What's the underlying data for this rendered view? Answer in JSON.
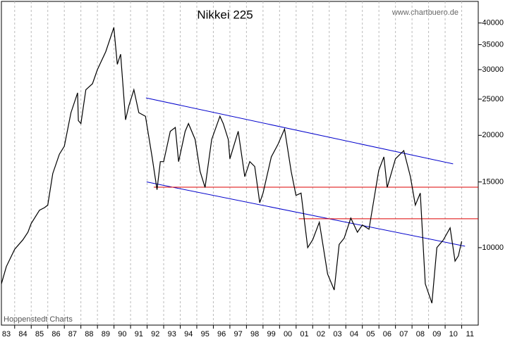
{
  "chart_data": {
    "type": "line",
    "title": "Nikkei 225",
    "subtitle": "www.chartbuero.de",
    "source": "Hoppenstedt Charts",
    "log_scale": true,
    "grid": true,
    "xlim": [
      1983.2,
      2012
    ],
    "ylim": [
      6200,
      45700
    ],
    "yticks": [
      10000,
      15000,
      20000,
      25000,
      30000,
      35000,
      40000
    ],
    "xticks": [
      {
        "value": 1983,
        "label": "83"
      },
      {
        "value": 1984,
        "label": "84"
      },
      {
        "value": 1985,
        "label": "85"
      },
      {
        "value": 1986,
        "label": "86"
      },
      {
        "value": 1987,
        "label": "87"
      },
      {
        "value": 1988,
        "label": "88"
      },
      {
        "value": 1989,
        "label": "89"
      },
      {
        "value": 1990,
        "label": "90"
      },
      {
        "value": 1991,
        "label": "91"
      },
      {
        "value": 1992,
        "label": "92"
      },
      {
        "value": 1993,
        "label": "93"
      },
      {
        "value": 1994,
        "label": "94"
      },
      {
        "value": 1995,
        "label": "95"
      },
      {
        "value": 1996,
        "label": "96"
      },
      {
        "value": 1997,
        "label": "97"
      },
      {
        "value": 1998,
        "label": "98"
      },
      {
        "value": 1999,
        "label": "99"
      },
      {
        "value": 2000,
        "label": "00"
      },
      {
        "value": 2001,
        "label": "01"
      },
      {
        "value": 2002,
        "label": "02"
      },
      {
        "value": 2003,
        "label": "03"
      },
      {
        "value": 2004,
        "label": "04"
      },
      {
        "value": 2005,
        "label": "05"
      },
      {
        "value": 2006,
        "label": "06"
      },
      {
        "value": 2007,
        "label": "07"
      },
      {
        "value": 2008,
        "label": "08"
      },
      {
        "value": 2009,
        "label": "09"
      },
      {
        "value": 2010,
        "label": "10"
      },
      {
        "value": 2011,
        "label": "11"
      }
    ],
    "series": [
      {
        "color": "#000000",
        "x": [
          1983.2,
          1983.5,
          1984.0,
          1984.5,
          1984.8,
          1985.0,
          1985.5,
          1985.8,
          1986.0,
          1986.3,
          1986.7,
          1987.0,
          1987.4,
          1987.8,
          1987.85,
          1988.0,
          1988.3,
          1988.7,
          1989.0,
          1989.5,
          1989.99,
          1990.2,
          1990.4,
          1990.7,
          1990.9,
          1991.2,
          1991.5,
          1991.9,
          1992.3,
          1992.6,
          1992.8,
          1993.0,
          1993.4,
          1993.7,
          1993.9,
          1994.3,
          1994.5,
          1994.9,
          1995.2,
          1995.5,
          1995.9,
          1996.4,
          1996.6,
          1996.9,
          1997.0,
          1997.5,
          1997.9,
          1998.2,
          1998.5,
          1998.8,
          1999.0,
          1999.5,
          1999.9,
          2000.3,
          2000.7,
          2000.99,
          2001.3,
          2001.7,
          2002.0,
          2002.4,
          2002.9,
          2003.3,
          2003.6,
          2003.9,
          2004.3,
          2004.7,
          2005.0,
          2005.4,
          2005.99,
          2006.3,
          2006.5,
          2007.0,
          2007.5,
          2007.9,
          2008.2,
          2008.5,
          2008.8,
          2009.2,
          2009.5,
          2009.9,
          2010.3,
          2010.6,
          2010.8,
          2011.0
        ],
        "values": [
          8000,
          8900,
          9900,
          10500,
          11000,
          11600,
          12600,
          12800,
          13000,
          15800,
          17800,
          18700,
          23000,
          26000,
          21900,
          21500,
          26500,
          27500,
          30000,
          33500,
          38900,
          31000,
          33000,
          22000,
          24000,
          26500,
          23000,
          22500,
          17500,
          14300,
          17000,
          17000,
          20500,
          21000,
          17000,
          20500,
          21500,
          19500,
          16000,
          14500,
          19500,
          22500,
          21500,
          19500,
          17300,
          20500,
          15500,
          17000,
          16500,
          13200,
          14000,
          17500,
          18900,
          20800,
          16000,
          13800,
          14000,
          10000,
          10500,
          11700,
          8500,
          7700,
          10200,
          10600,
          12000,
          11000,
          11500,
          11200,
          16100,
          17500,
          14500,
          17300,
          18200,
          15500,
          13000,
          14000,
          8000,
          7100,
          10000,
          10500,
          11300,
          9200,
          9500,
          10400
        ]
      }
    ],
    "trend_lines": [
      {
        "color": "#0000cc",
        "x": [
          1991.93,
          2010.48
        ],
        "values": [
          25200,
          16770
        ]
      },
      {
        "color": "#0000cc",
        "x": [
          1991.97,
          2011.2
        ],
        "values": [
          15000,
          10090
        ]
      },
      {
        "color": "#dd0000",
        "x": [
          1992.4,
          2012
        ],
        "values": [
          14520,
          14520
        ]
      },
      {
        "color": "#dd0000",
        "x": [
          2001.16,
          2012
        ],
        "values": [
          11950,
          11950
        ]
      }
    ]
  }
}
